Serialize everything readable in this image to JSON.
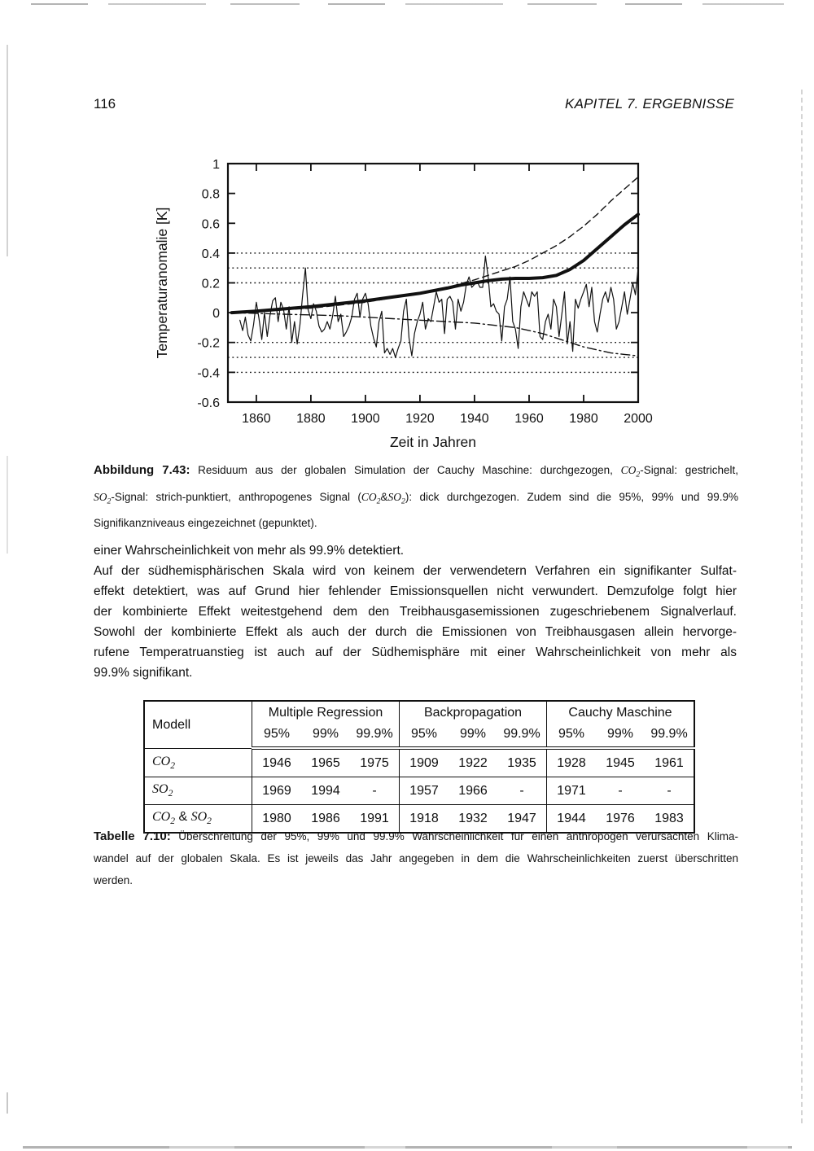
{
  "colors": {
    "ink": "#111111",
    "paper": "#ffffff"
  },
  "header": {
    "page_number": "116",
    "chapter_title": "KAPITEL 7.  ERGEBNISSE"
  },
  "chart_data": {
    "type": "line",
    "xlabel": "Zeit in Jahren",
    "ylabel": "Temperaturanomalie [K]",
    "xlim": [
      1849.6,
      2000
    ],
    "ylim": [
      -0.6,
      1
    ],
    "xticks": [
      1860,
      1880,
      1900,
      1920,
      1940,
      1960,
      1980,
      2000
    ],
    "ytick_values": [
      1,
      0.8,
      0.6,
      0.4,
      0.2,
      0,
      -0.2,
      -0.4,
      -0.6
    ],
    "ytick_labels": [
      "1",
      "0.8",
      "0.6",
      "0.4",
      "0.2",
      "0",
      "-0.2",
      "-0.4",
      "-0.6"
    ],
    "grid": "off",
    "legend": "none (styles explained in caption)",
    "significance_levels": {
      "95%": 0.2,
      "99%": 0.3,
      "99.9%": 0.4
    },
    "significance_lines_k": [
      0.2,
      0.3,
      0.4,
      -0.2,
      -0.3,
      -0.4
    ],
    "series": [
      {
        "id": "residuum",
        "name": "Residuum aus der globalen Simulation der Cauchy Maschine",
        "line": "thin-solid",
        "x_start": 1854,
        "x_step": 1,
        "values": [
          -0.05,
          -0.12,
          -0.03,
          -0.15,
          -0.19,
          -0.08,
          0.07,
          -0.04,
          -0.18,
          0.0,
          -0.16,
          -0.02,
          0.08,
          0.1,
          -0.06,
          0.07,
          0.02,
          -0.11,
          0.04,
          -0.2,
          -0.06,
          -0.21,
          -0.08,
          0.12,
          0.3,
          0.02,
          -0.04,
          0.06,
          0.01,
          -0.09,
          -0.13,
          -0.11,
          -0.06,
          -0.11,
          -0.02,
          0.11,
          -0.06,
          -0.01,
          -0.16,
          -0.13,
          -0.09,
          -0.03,
          0.09,
          0.13,
          -0.03,
          0.09,
          0.13,
          0.06,
          -0.09,
          -0.17,
          -0.23,
          -0.06,
          0.01,
          -0.27,
          -0.24,
          -0.28,
          -0.24,
          -0.3,
          -0.24,
          -0.19,
          0.01,
          0.09,
          -0.17,
          -0.29,
          -0.14,
          -0.06,
          -0.01,
          0.07,
          -0.11,
          -0.04,
          -0.06,
          0.04,
          0.14,
          0.07,
          0.09,
          -0.14,
          0.09,
          0.11,
          0.07,
          -0.11,
          0.09,
          0.01,
          0.07,
          0.19,
          0.24,
          0.17,
          0.19,
          0.21,
          0.17,
          0.17,
          0.38,
          0.24,
          0.04,
          0.06,
          0.01,
          -0.01,
          -0.19,
          0.04,
          0.09,
          0.24,
          -0.06,
          -0.11,
          -0.24,
          0.04,
          0.14,
          0.09,
          0.04,
          0.14,
          0.11,
          0.14,
          -0.16,
          -0.18,
          -0.06,
          -0.01,
          -0.11,
          0.09,
          0.04,
          -0.16,
          -0.01,
          0.14,
          -0.21,
          -0.06,
          -0.26,
          0.09,
          0.03,
          0.09,
          0.14,
          0.19,
          0.04,
          0.17,
          -0.06,
          -0.13,
          -0.01,
          0.09,
          0.14,
          0.07,
          0.17,
          0.09,
          -0.11,
          -0.06,
          0.04,
          0.14,
          -0.01,
          0.09,
          0.2,
          0.12,
          0.3
        ]
      },
      {
        "id": "co2-signal",
        "name": "CO2-Signal (gestrichelt)",
        "line": "dashed",
        "x": [
          1851,
          1860,
          1870,
          1880,
          1890,
          1900,
          1910,
          1920,
          1930,
          1940,
          1945,
          1950,
          1955,
          1960,
          1965,
          1970,
          1975,
          1980,
          1985,
          1990,
          1995,
          2000
        ],
        "values": [
          0.0,
          0.01,
          0.02,
          0.03,
          0.05,
          0.07,
          0.1,
          0.13,
          0.17,
          0.22,
          0.25,
          0.28,
          0.31,
          0.35,
          0.4,
          0.45,
          0.51,
          0.58,
          0.66,
          0.75,
          0.83,
          0.91
        ]
      },
      {
        "id": "so2-signal",
        "name": "SO2-Signal (strich-punktiert)",
        "line": "dash-dot",
        "x": [
          1851,
          1870,
          1890,
          1900,
          1910,
          1920,
          1930,
          1940,
          1950,
          1955,
          1960,
          1965,
          1970,
          1975,
          1980,
          1985,
          1990,
          1995,
          2000
        ],
        "values": [
          0.0,
          -0.01,
          -0.02,
          -0.03,
          -0.04,
          -0.05,
          -0.06,
          -0.07,
          -0.09,
          -0.1,
          -0.12,
          -0.14,
          -0.17,
          -0.2,
          -0.23,
          -0.25,
          -0.27,
          -0.28,
          -0.29
        ]
      },
      {
        "id": "anthropogenes-signal",
        "name": "anthropogenes Signal (CO2&SO2), dick durchgezogen",
        "line": "thick-solid",
        "x": [
          1851,
          1860,
          1870,
          1880,
          1890,
          1900,
          1910,
          1920,
          1930,
          1935,
          1940,
          1945,
          1950,
          1955,
          1960,
          1965,
          1970,
          1975,
          1980,
          1985,
          1990,
          1995,
          2000
        ],
        "values": [
          0.0,
          0.01,
          0.025,
          0.04,
          0.06,
          0.08,
          0.105,
          0.13,
          0.165,
          0.185,
          0.2,
          0.215,
          0.225,
          0.23,
          0.23,
          0.235,
          0.25,
          0.29,
          0.35,
          0.43,
          0.51,
          0.59,
          0.66
        ]
      }
    ]
  },
  "figure_caption": {
    "justify_last_lines": [
      0,
      1
    ],
    "lines": [
      [
        {
          "t": "Abbildung 7.43:",
          "b": 1
        },
        {
          "t": " Residuum aus der globalen Simulation der Cauchy Maschine: durchgezogen, "
        },
        {
          "t": "CO",
          "i": 1
        },
        {
          "t": "2",
          "i": 1,
          "s": 1
        },
        {
          "t": "-Signal: gestrichelt,"
        }
      ],
      [
        {
          "t": "SO",
          "i": 1
        },
        {
          "t": "2",
          "i": 1,
          "s": 1
        },
        {
          "t": "-Signal: strich-punktiert, anthropogenes Signal ("
        },
        {
          "t": "CO",
          "i": 1
        },
        {
          "t": "2",
          "i": 1,
          "s": 1
        },
        {
          "t": "&"
        },
        {
          "t": "SO",
          "i": 1
        },
        {
          "t": "2",
          "i": 1,
          "s": 1
        },
        {
          "t": "): dick durchgezogen. Zudem sind die 95%, 99% und 99.9%"
        }
      ],
      [
        {
          "t": "Signifikanzniveaus eingezeichnet (gepunktet)."
        }
      ]
    ]
  },
  "paragraph": {
    "justify_last_lines": [
      1,
      2,
      3,
      4,
      5
    ],
    "lines": [
      "einer Wahrscheinlichkeit von mehr als 99.9% detektiert.",
      "Auf der südhemisphärischen Skala wird von keinem der verwendetern Verfahren ein signifikanter Sulfat-",
      "effekt detektiert, was auf Grund hier fehlender Emissionsquellen nicht verwundert. Demzufolge folgt hier",
      "der kombinierte Effekt weitestgehend dem den Treibhausgasemissionen zugeschriebenem Signalverlauf.",
      "Sowohl der kombinierte Effekt als auch der durch die Emissionen von Treibhausgasen allein hervorge-",
      "rufene Temperatruanstieg ist auch auf der Südhemisphäre mit einer Wahrscheinlichkeit von mehr als",
      "99.9% signifikant."
    ]
  },
  "table": {
    "model_header": "Modell",
    "col_groups": [
      "Multiple Regression",
      "Backpropagation",
      "Cauchy Maschine"
    ],
    "pct_headers": [
      "95%",
      "99%",
      "99.9%"
    ],
    "rows": [
      {
        "label_rich": [
          {
            "t": "CO",
            "i": 1
          },
          {
            "t": "2",
            "i": 1,
            "s": 1
          }
        ],
        "values": [
          "1946",
          "1965",
          "1975",
          "1909",
          "1922",
          "1935",
          "1928",
          "1945",
          "1961"
        ]
      },
      {
        "label_rich": [
          {
            "t": "SO",
            "i": 1
          },
          {
            "t": "2",
            "i": 1,
            "s": 1
          }
        ],
        "values": [
          "1969",
          "1994",
          "-",
          "1957",
          "1966",
          "-",
          "1971",
          "-",
          "-"
        ]
      },
      {
        "label_rich": [
          {
            "t": "CO",
            "i": 1
          },
          {
            "t": "2",
            "i": 1,
            "s": 1
          },
          {
            "t": " & "
          },
          {
            "t": "SO",
            "i": 1
          },
          {
            "t": "2",
            "i": 1,
            "s": 1
          }
        ],
        "values": [
          "1980",
          "1986",
          "1991",
          "1918",
          "1932",
          "1947",
          "1944",
          "1976",
          "1983"
        ]
      }
    ]
  },
  "table_caption": {
    "justify_last_lines": [
      0,
      1
    ],
    "lines": [
      [
        {
          "t": "Tabelle 7.10:",
          "b": 1
        },
        {
          "t": " Überschreitung der 95%, 99% und 99.9% Wahrscheinlichkeit für einen anthropogen verursachten Klima-"
        }
      ],
      [
        {
          "t": "wandel auf der globalen Skala. Es ist jeweils das Jahr angegeben in dem die Wahrscheinlichkeiten zuerst überschritten"
        }
      ],
      [
        {
          "t": "werden."
        }
      ]
    ]
  }
}
